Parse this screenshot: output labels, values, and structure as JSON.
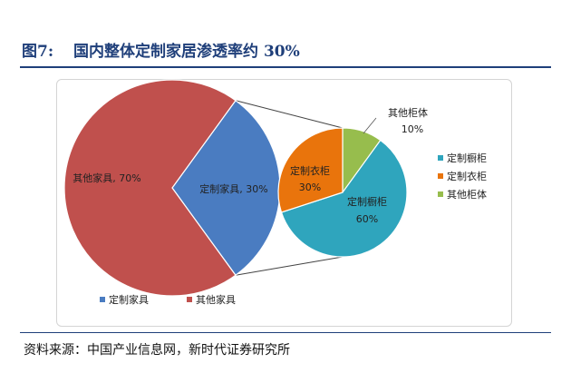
{
  "figure": {
    "label": "图7:",
    "title": "国内整体定制家居渗透率约 30%",
    "source": "资料来源：中国产业信息网，新时代证券研究所"
  },
  "chart_data": [
    {
      "type": "pie",
      "slices": [
        {
          "name": "定制家具",
          "value": 30,
          "label": "定制家具, 30%",
          "color": "#4a7cc1"
        },
        {
          "name": "其他家具",
          "value": 70,
          "label": "其他家具, 70%",
          "color": "#c0504d"
        }
      ],
      "legend": [
        "定制家具",
        "其他家具"
      ],
      "legend_position": "bottom"
    },
    {
      "type": "pie",
      "slices": [
        {
          "name": "定制橱柜",
          "value": 60,
          "label": "定制橱柜, 60%",
          "color": "#2fa5bd"
        },
        {
          "name": "定制衣柜",
          "value": 30,
          "label": "定制衣柜, 30%",
          "color": "#e9740c"
        },
        {
          "name": "其他柜体",
          "value": 10,
          "label": "其他柜体, 10%",
          "color": "#97bd4d"
        }
      ],
      "legend": [
        "定制橱柜",
        "定制衣柜",
        "其他柜体"
      ],
      "legend_position": "right"
    }
  ]
}
